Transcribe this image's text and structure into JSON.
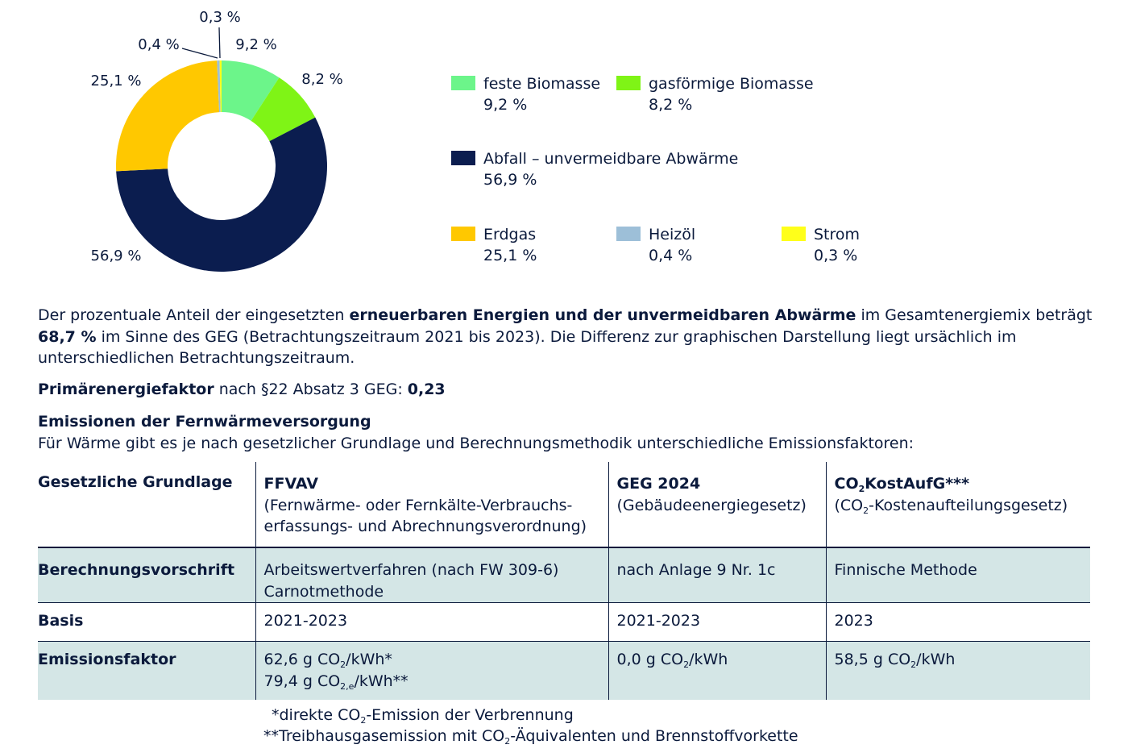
{
  "chart_data": {
    "type": "pie",
    "style": "donut",
    "slices": [
      {
        "name": "feste Biomasse",
        "value": 9.2,
        "label": "9,2 %",
        "color": "#6cf58a"
      },
      {
        "name": "gasförmige Biomasse",
        "value": 8.2,
        "label": "8,2 %",
        "color": "#7ff416"
      },
      {
        "name": "Abfall – unvermeidbare Abwärme",
        "value": 56.9,
        "label": "56,9 %",
        "color": "#0b1d4f"
      },
      {
        "name": "Erdgas",
        "value": 25.1,
        "label": "25,1 %",
        "color": "#ffc800"
      },
      {
        "name": "Heizöl",
        "value": 0.4,
        "label": "0,4 %",
        "color": "#9dbfd8"
      },
      {
        "name": "Strom",
        "value": 0.3,
        "label": "0,3 %",
        "color": "#ffff1a"
      }
    ],
    "legend_placement": "right"
  },
  "paragraphs": {
    "p1_a": "Der prozentuale Anteil der eingesetzten ",
    "p1_b": "erneuerbaren Energien und der unvermeidbaren Abwärme",
    "p1_c": " im Gesamtenergiemix beträgt ",
    "p1_d": "68,7 %",
    "p1_e": " im Sinne des GEG (Betrachtungszeitraum 2021 bis 2023). Die Differenz zur graphischen Darstellung liegt ursächlich im unterschiedlichen Betrachtungszeitraum.",
    "p2_a": "Primärenergiefaktor",
    "p2_b": " nach §22 Absatz 3 GEG: ",
    "p2_c": "0,23",
    "p3_heading": "Emissionen der Fernwärmeversorgung",
    "p3_text": "Für Wärme gibt es je nach gesetzlicher Grundlage und Berechnungsmethodik unterschiedliche Emissionsfaktoren:"
  },
  "table": {
    "header": {
      "c0": "Gesetzliche Grundlage",
      "c1_title": "FFVAV",
      "c1_sub": "(Fernwärme- oder Fernkälte-Verbrauchs-erfassungs- und Abrechnungsverordnung)",
      "c2_title": "GEG 2024",
      "c2_sub": "(Gebäudeenergiegesetz)",
      "c3_title_a": "CO",
      "c3_title_sub": "2",
      "c3_title_b": "KostAufG***",
      "c3_sub_a": "(CO",
      "c3_sub_sub": "2",
      "c3_sub_b": "-Kostenaufteilungsgesetz)"
    },
    "row1": {
      "label": "Berechnungsvorschrift",
      "c1_line1": "Arbeitswertverfahren (nach FW 309-6)",
      "c1_line2": "Carnotmethode",
      "c2": "nach Anlage 9 Nr. 1c",
      "c3": "Finnische Methode"
    },
    "row2": {
      "label": "Basis",
      "c1": "2021-2023",
      "c2": "2021-2023",
      "c3": "2023"
    },
    "row3": {
      "label": "Emissionsfaktor",
      "c1_l1_a": "62,6 g CO",
      "c1_l1_sub": "2",
      "c1_l1_b": "/kWh*",
      "c1_l2_a": "79,4 g CO",
      "c1_l2_sub": "2,e",
      "c1_l2_b": "/kWh**",
      "c2_a": "0,0 g CO",
      "c2_sub": "2",
      "c2_b": "/kWh",
      "c3_a": "58,5 g CO",
      "c3_sub": "2",
      "c3_b": "/kWh"
    }
  },
  "footnotes": {
    "f1_a": "*direkte CO",
    "f1_sub": "2",
    "f1_b": "-Emission der Verbrennung",
    "f2_a": "**Treibhausgasemission mit CO",
    "f2_sub": "2",
    "f2_b": "-Äquivalenten und Brennstoffvorkette"
  }
}
